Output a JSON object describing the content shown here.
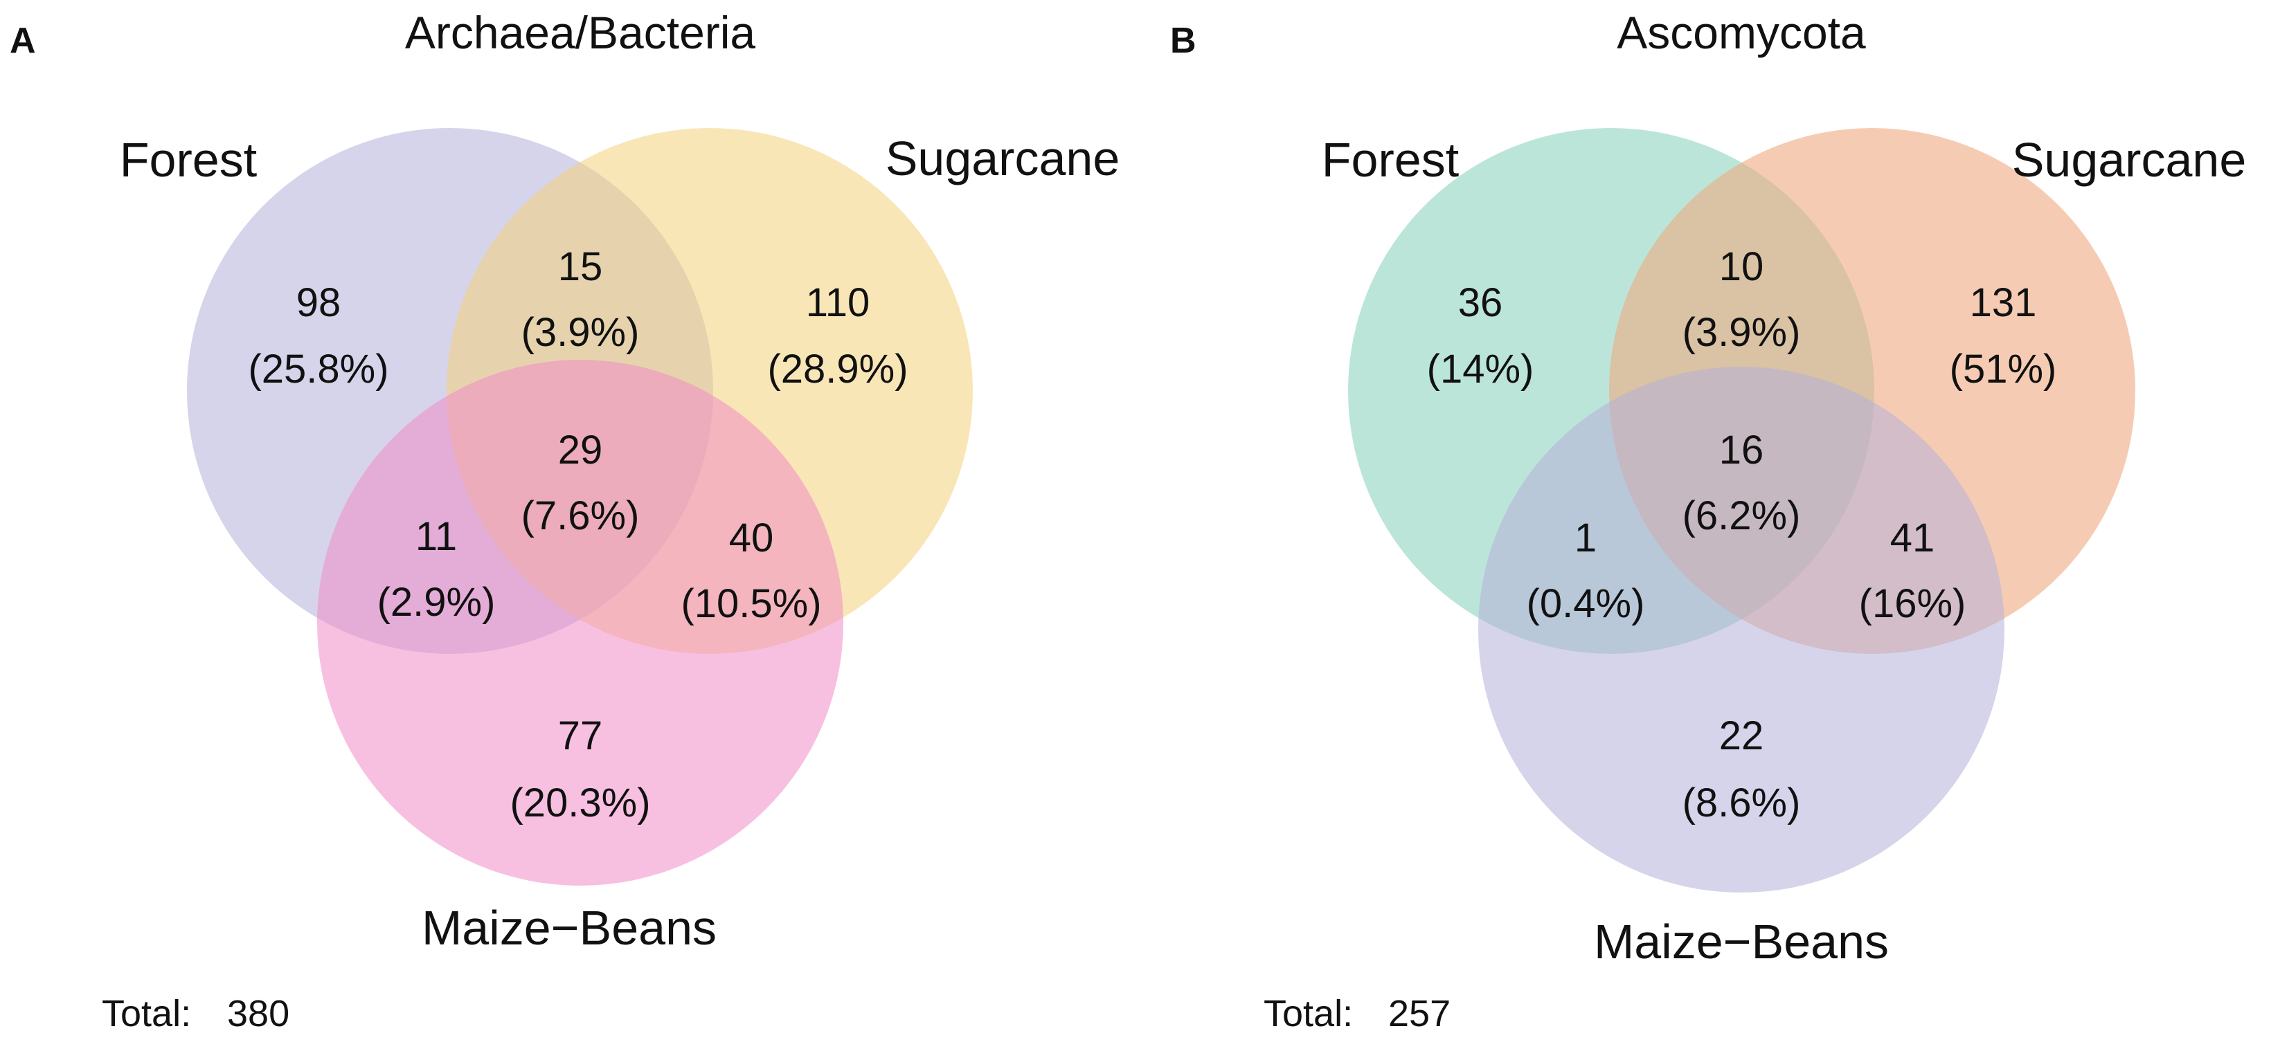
{
  "panels": [
    {
      "letter": "A",
      "title": "Archaea/Bacteria",
      "sets": {
        "forest": {
          "label": "Forest",
          "color": "#b5b1d9"
        },
        "sugarcane": {
          "label": "Sugarcane",
          "color": "#f4d27c"
        },
        "maize": {
          "label": "Maize−Beans",
          "color": "#f08cc6"
        }
      },
      "regions": {
        "forest_only": {
          "count": "98",
          "pct": "(25.8%)"
        },
        "forest_sugarcane": {
          "count": "15",
          "pct": "(3.9%)"
        },
        "sugarcane_only": {
          "count": "110",
          "pct": "(28.9%)"
        },
        "all_three": {
          "count": "29",
          "pct": "(7.6%)"
        },
        "forest_maize": {
          "count": "11",
          "pct": "(2.9%)"
        },
        "sugarcane_maize": {
          "count": "40",
          "pct": "(10.5%)"
        },
        "maize_only": {
          "count": "77",
          "pct": "(20.3%)"
        }
      },
      "total_label": "Total:",
      "total_value": "380"
    },
    {
      "letter": "B",
      "title": "Ascomycota",
      "sets": {
        "forest": {
          "label": "Forest",
          "color": "#8fd3c2"
        },
        "sugarcane": {
          "label": "Sugarcane",
          "color": "#eeaa80"
        },
        "maize": {
          "label": "Maize−Beans",
          "color": "#b5b1d9"
        }
      },
      "regions": {
        "forest_only": {
          "count": "36",
          "pct": "(14%)"
        },
        "forest_sugarcane": {
          "count": "10",
          "pct": "(3.9%)"
        },
        "sugarcane_only": {
          "count": "131",
          "pct": "(51%)"
        },
        "all_three": {
          "count": "16",
          "pct": "(6.2%)"
        },
        "forest_maize": {
          "count": "1",
          "pct": "(0.4%)"
        },
        "sugarcane_maize": {
          "count": "41",
          "pct": "(16%)"
        },
        "maize_only": {
          "count": "22",
          "pct": "(8.6%)"
        }
      },
      "total_label": "Total:",
      "total_value": "257"
    }
  ]
}
